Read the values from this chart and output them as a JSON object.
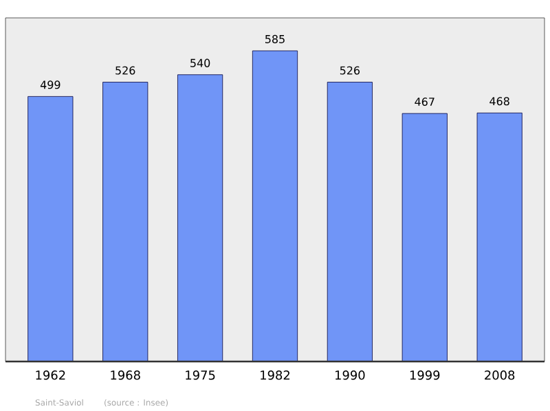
{
  "chart_data": {
    "type": "bar",
    "categories": [
      "1962",
      "1968",
      "1975",
      "1982",
      "1990",
      "1999",
      "2008"
    ],
    "values": [
      499,
      526,
      540,
      585,
      526,
      467,
      468
    ],
    "color": "#7095f7",
    "data_labels": true,
    "annotations": [
      "Saint-Saviol",
      "(source : Insee)"
    ]
  }
}
